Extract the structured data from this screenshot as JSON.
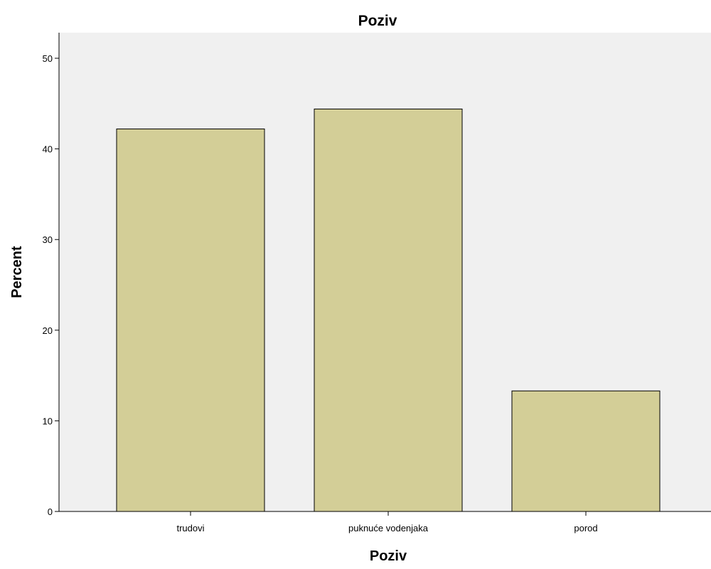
{
  "chart_data": {
    "type": "bar",
    "title": "Poziv",
    "xlabel": "Poziv",
    "ylabel": "Percent",
    "categories": [
      "trudovi",
      "puknuće vodenjaka",
      "porod"
    ],
    "values": [
      42.2,
      44.4,
      13.3
    ],
    "ylim": [
      0,
      52.5
    ],
    "yticks": [
      0,
      10,
      20,
      30,
      40,
      50
    ],
    "grid": false,
    "legend": "none",
    "colors": {
      "plot_background": "#f0f0f0",
      "bar_fill": "#d3ce97",
      "bar_stroke": "#000000",
      "axis": "#000000"
    }
  }
}
